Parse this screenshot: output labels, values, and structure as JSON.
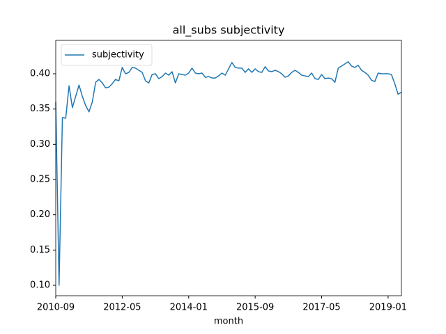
{
  "chart_data": {
    "type": "line",
    "title": "all_subs subjectivity",
    "x_label": "month",
    "x": [
      "2010-09",
      "2010-10",
      "2010-11",
      "2010-12",
      "2011-01",
      "2011-02",
      "2011-03",
      "2011-04",
      "2011-05",
      "2011-06",
      "2011-07",
      "2011-08",
      "2011-09",
      "2011-10",
      "2011-11",
      "2011-12",
      "2012-01",
      "2012-02",
      "2012-03",
      "2012-04",
      "2012-05",
      "2012-06",
      "2012-07",
      "2012-08",
      "2012-09",
      "2012-10",
      "2012-11",
      "2012-12",
      "2013-01",
      "2013-02",
      "2013-03",
      "2013-04",
      "2013-05",
      "2013-06",
      "2013-07",
      "2013-08",
      "2013-09",
      "2013-10",
      "2013-11",
      "2013-12",
      "2014-01",
      "2014-02",
      "2014-03",
      "2014-04",
      "2014-05",
      "2014-06",
      "2014-07",
      "2014-08",
      "2014-09",
      "2014-10",
      "2014-11",
      "2014-12",
      "2015-01",
      "2015-02",
      "2015-03",
      "2015-04",
      "2015-05",
      "2015-06",
      "2015-07",
      "2015-08",
      "2015-09",
      "2015-10",
      "2015-11",
      "2015-12",
      "2016-01",
      "2016-02",
      "2016-03",
      "2016-04",
      "2016-05",
      "2016-06",
      "2016-07",
      "2016-08",
      "2016-09",
      "2016-10",
      "2016-11",
      "2016-12",
      "2017-01",
      "2017-02",
      "2017-03",
      "2017-04",
      "2017-05",
      "2017-06",
      "2017-07",
      "2017-08",
      "2017-09",
      "2017-10",
      "2017-11",
      "2017-12",
      "2018-01",
      "2018-02",
      "2018-03",
      "2018-04",
      "2018-05",
      "2018-06",
      "2018-07",
      "2018-08",
      "2018-09",
      "2018-10",
      "2018-11",
      "2018-12",
      "2019-01",
      "2019-02",
      "2019-03",
      "2019-04",
      "2019-05"
    ],
    "series": [
      {
        "name": "subjectivity",
        "color": "#1f77b4",
        "values": [
          0.36,
          0.1,
          0.338,
          0.337,
          0.383,
          0.352,
          0.368,
          0.384,
          0.368,
          0.355,
          0.346,
          0.36,
          0.388,
          0.392,
          0.387,
          0.38,
          0.381,
          0.386,
          0.392,
          0.39,
          0.409,
          0.4,
          0.402,
          0.409,
          0.408,
          0.405,
          0.402,
          0.39,
          0.387,
          0.399,
          0.4,
          0.393,
          0.396,
          0.401,
          0.398,
          0.403,
          0.387,
          0.4,
          0.399,
          0.398,
          0.401,
          0.408,
          0.401,
          0.4,
          0.401,
          0.395,
          0.396,
          0.394,
          0.394,
          0.397,
          0.401,
          0.398,
          0.407,
          0.416,
          0.409,
          0.408,
          0.408,
          0.402,
          0.407,
          0.402,
          0.407,
          0.403,
          0.402,
          0.41,
          0.404,
          0.403,
          0.405,
          0.403,
          0.4,
          0.395,
          0.397,
          0.402,
          0.405,
          0.402,
          0.398,
          0.397,
          0.396,
          0.401,
          0.393,
          0.392,
          0.399,
          0.393,
          0.394,
          0.393,
          0.388,
          0.408,
          0.411,
          0.414,
          0.417,
          0.411,
          0.409,
          0.412,
          0.405,
          0.402,
          0.398,
          0.391,
          0.389,
          0.401,
          0.4,
          0.4,
          0.4,
          0.399,
          0.386,
          0.371,
          0.374
        ]
      }
    ],
    "xlim": [
      "2010-09",
      "2019-05"
    ],
    "xticks": [
      "2010-09",
      "2012-05",
      "2014-01",
      "2015-09",
      "2017-05",
      "2019-01"
    ],
    "ylim": [
      0.0852,
      0.4474
    ],
    "yticks": [
      {
        "value": 0.1,
        "label": "0.10"
      },
      {
        "value": 0.15,
        "label": "0.15"
      },
      {
        "value": 0.2,
        "label": "0.20"
      },
      {
        "value": 0.25,
        "label": "0.25"
      },
      {
        "value": 0.3,
        "label": "0.30"
      },
      {
        "value": 0.35,
        "label": "0.35"
      },
      {
        "value": 0.4,
        "label": "0.40"
      }
    ],
    "legend": "upper left",
    "grid": false
  }
}
